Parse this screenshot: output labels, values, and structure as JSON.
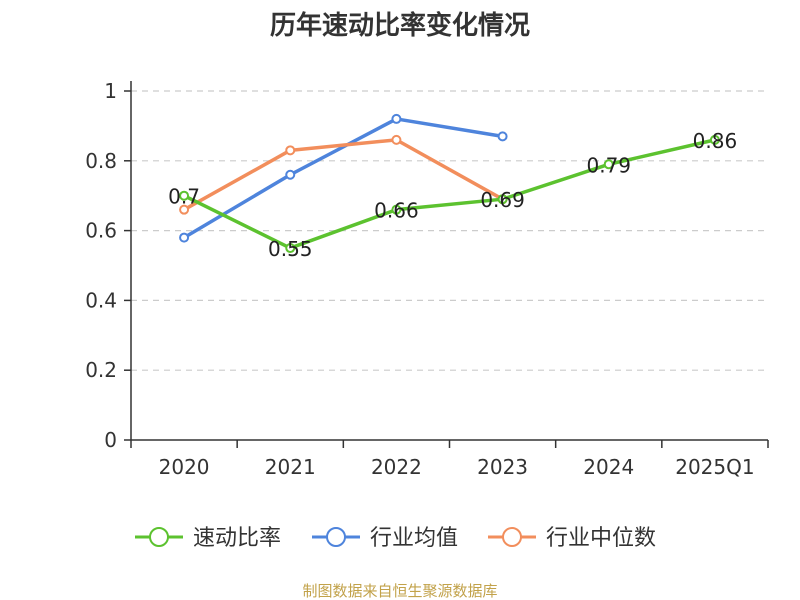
{
  "chart_data": {
    "type": "line",
    "title": "历年速动比率变化情况",
    "categories": [
      "2020",
      "2021",
      "2022",
      "2023",
      "2024",
      "2025Q1"
    ],
    "ylim": [
      0,
      1
    ],
    "yticks": [
      "0",
      "0.2",
      "0.4",
      "0.6",
      "0.8",
      "1"
    ],
    "ytick_values": [
      0,
      0.2,
      0.4,
      0.6,
      0.8,
      1
    ],
    "grid": true,
    "legend_position": "bottom",
    "series": [
      {
        "name": "速动比率",
        "color": "#5cc22f",
        "values": [
          0.7,
          0.55,
          0.66,
          0.69,
          0.79,
          0.86
        ],
        "labels": [
          "0.7",
          "0.55",
          "0.66",
          "0.69",
          "0.79",
          "0.86"
        ]
      },
      {
        "name": "行业均值",
        "color": "#4e84dc",
        "values": [
          0.58,
          0.76,
          0.92,
          0.87,
          null,
          null
        ]
      },
      {
        "name": "行业中位数",
        "color": "#f28e5c",
        "values": [
          0.66,
          0.83,
          0.86,
          0.69,
          null,
          null
        ]
      }
    ],
    "source": "制图数据来自恒生聚源数据库"
  }
}
